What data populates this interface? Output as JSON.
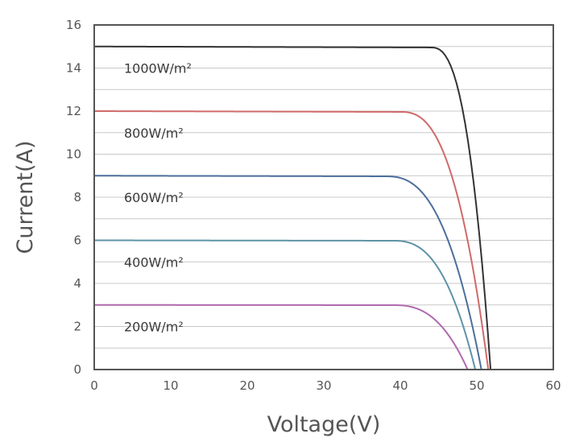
{
  "chart_data": {
    "type": "line",
    "title": "",
    "xlabel": "Voltage(V)",
    "ylabel": "Current(A)",
    "xlim": [
      0,
      60
    ],
    "ylim": [
      0,
      16
    ],
    "xticks": [
      0,
      10,
      20,
      30,
      40,
      50,
      60
    ],
    "yticks": [
      0,
      2,
      4,
      6,
      8,
      10,
      12,
      14,
      16
    ],
    "ygrid_step": 1,
    "grid": "horizontal",
    "series": [
      {
        "name": "1000W/m²",
        "isc": 15,
        "voc": 51.8,
        "knee_start": 44,
        "color": "#333333",
        "label_y": 14
      },
      {
        "name": "800W/m²",
        "isc": 12,
        "voc": 51.5,
        "knee_start": 40,
        "color": "#d06a6a",
        "label_y": 11
      },
      {
        "name": "600W/m²",
        "isc": 9,
        "voc": 50.6,
        "knee_start": 38,
        "color": "#4c6f9c",
        "label_y": 8
      },
      {
        "name": "400W/m²",
        "isc": 6,
        "voc": 49.8,
        "knee_start": 39,
        "color": "#5f93a6",
        "label_y": 5
      },
      {
        "name": "200W/m²",
        "isc": 3,
        "voc": 48.8,
        "knee_start": 39,
        "color": "#b06aae",
        "label_y": 2
      }
    ]
  }
}
